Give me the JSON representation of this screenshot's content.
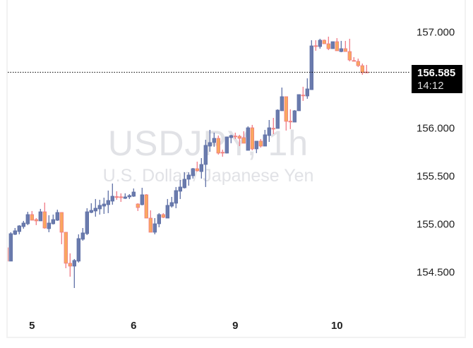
{
  "watermark": {
    "symbol": "USDJPY, 1h",
    "description": "U.S. Dollar / Japanese Yen"
  },
  "current_price": {
    "value": "156.585",
    "countdown": "14:12"
  },
  "colors": {
    "bull_fill": "#6a7bad",
    "bull_line": "#5f70a6",
    "bear_fill": "#f9a85f",
    "bear_line": "#f07a86",
    "price_line": "#000000"
  },
  "chart_data": {
    "type": "candlestick",
    "title": "",
    "ylim": [
      154.066,
      157.338
    ],
    "y_ticks": [
      "154.500",
      "155.000",
      "155.500",
      "156.000",
      "157.000"
    ],
    "x_labels": [
      {
        "label": "5",
        "index": 6
      },
      {
        "label": "6",
        "index": 30
      },
      {
        "label": "9",
        "index": 54
      },
      {
        "label": "10",
        "index": 78
      }
    ],
    "grid": false,
    "ohlc": [
      [
        154.757,
        154.801,
        154.603,
        154.618
      ],
      [
        154.618,
        154.919,
        154.618,
        154.904
      ],
      [
        154.897,
        154.963,
        154.89,
        154.934
      ],
      [
        154.926,
        154.993,
        154.897,
        154.985
      ],
      [
        154.978,
        155.037,
        154.956,
        155.015
      ],
      [
        155.007,
        155.132,
        154.993,
        155.103
      ],
      [
        155.103,
        155.14,
        155.044,
        155.044
      ],
      [
        155.051,
        155.066,
        154.993,
        155.037
      ],
      [
        155.037,
        155.162,
        155.037,
        155.132
      ],
      [
        155.132,
        155.228,
        154.956,
        154.963
      ],
      [
        154.956,
        155.096,
        154.919,
        155.015
      ],
      [
        155.007,
        155.103,
        155.0,
        155.051
      ],
      [
        155.044,
        155.154,
        155.037,
        155.125
      ],
      [
        155.125,
        155.125,
        154.794,
        154.919
      ],
      [
        154.919,
        154.919,
        154.544,
        154.596
      ],
      [
        154.596,
        154.699,
        154.456,
        154.566
      ],
      [
        154.566,
        154.64,
        154.338,
        154.625
      ],
      [
        154.618,
        154.897,
        154.603,
        154.853
      ],
      [
        154.846,
        154.963,
        154.831,
        154.912
      ],
      [
        154.904,
        155.169,
        154.89,
        155.132
      ],
      [
        155.125,
        155.221,
        155.118,
        155.147
      ],
      [
        155.14,
        155.265,
        155.081,
        155.169
      ],
      [
        155.162,
        155.257,
        155.103,
        155.199
      ],
      [
        155.191,
        155.279,
        155.11,
        155.213
      ],
      [
        155.206,
        155.353,
        155.118,
        155.25
      ],
      [
        155.243,
        155.426,
        155.206,
        155.294
      ],
      [
        155.29,
        155.346,
        155.257,
        155.285
      ],
      [
        155.288,
        155.324,
        155.235,
        155.283
      ],
      [
        155.272,
        155.324,
        155.265,
        155.287
      ],
      [
        155.287,
        155.316,
        155.265,
        155.301
      ],
      [
        155.294,
        155.375,
        155.287,
        155.338
      ],
      [
        155.213,
        155.221,
        155.14,
        155.176
      ],
      [
        155.206,
        155.382,
        155.199,
        155.309
      ],
      [
        155.309,
        155.316,
        155.066,
        155.066
      ],
      [
        155.066,
        155.147,
        154.919,
        154.919
      ],
      [
        154.919,
        155.066,
        154.897,
        155.007
      ],
      [
        155.007,
        155.118,
        154.971,
        155.103
      ],
      [
        155.103,
        155.118,
        155.066,
        155.074
      ],
      [
        155.066,
        155.265,
        155.066,
        155.199
      ],
      [
        155.191,
        155.287,
        155.176,
        155.228
      ],
      [
        155.221,
        155.39,
        155.169,
        155.353
      ],
      [
        155.346,
        155.463,
        155.265,
        155.39
      ],
      [
        155.382,
        155.544,
        155.375,
        155.471
      ],
      [
        155.471,
        155.544,
        155.404,
        155.515
      ],
      [
        155.507,
        155.588,
        155.478,
        155.581
      ],
      [
        155.581,
        155.654,
        155.551,
        155.559
      ],
      [
        155.551,
        155.691,
        155.478,
        155.625
      ],
      [
        155.625,
        155.882,
        155.39,
        155.824
      ],
      [
        155.816,
        155.985,
        155.757,
        155.853
      ],
      [
        155.853,
        155.956,
        155.809,
        155.897
      ],
      [
        155.897,
        155.926,
        155.728,
        155.743
      ],
      [
        155.752,
        155.779,
        155.706,
        155.748
      ],
      [
        155.743,
        155.915,
        155.74,
        155.912
      ],
      [
        155.904,
        155.934,
        155.846,
        155.926
      ],
      [
        155.921,
        155.956,
        155.89,
        155.917
      ],
      [
        155.919,
        155.934,
        155.816,
        155.897
      ],
      [
        155.904,
        155.971,
        155.846,
        155.846
      ],
      [
        155.772,
        156.022,
        155.772,
        156.007
      ],
      [
        156.007,
        156.037,
        155.772,
        155.787
      ],
      [
        155.787,
        155.868,
        155.743,
        155.868
      ],
      [
        155.868,
        155.89,
        155.801,
        155.816
      ],
      [
        155.816,
        155.985,
        155.816,
        155.934
      ],
      [
        155.926,
        156.088,
        155.86,
        156.007
      ],
      [
        156.002,
        156.11,
        155.941,
        155.998
      ],
      [
        156.0,
        156.199,
        156.0,
        156.191
      ],
      [
        156.184,
        156.426,
        156.184,
        156.331
      ],
      [
        156.331,
        156.331,
        155.978,
        156.074
      ],
      [
        156.076,
        156.199,
        155.993,
        156.072
      ],
      [
        156.066,
        156.191,
        156.066,
        156.184
      ],
      [
        156.184,
        156.353,
        156.184,
        156.353
      ],
      [
        156.348,
        156.434,
        156.287,
        156.344
      ],
      [
        156.338,
        156.522,
        156.309,
        156.412
      ],
      [
        156.404,
        156.919,
        156.404,
        156.86
      ],
      [
        156.862,
        156.919,
        156.809,
        156.858
      ],
      [
        156.853,
        156.934,
        156.831,
        156.919
      ],
      [
        156.919,
        156.926,
        156.882,
        156.882
      ],
      [
        156.882,
        156.956,
        156.816,
        156.831
      ],
      [
        156.831,
        156.904,
        156.831,
        156.904
      ],
      [
        156.904,
        156.941,
        156.809,
        156.809
      ],
      [
        156.801,
        156.912,
        156.794,
        156.831
      ],
      [
        156.831,
        156.912,
        156.801,
        156.801
      ],
      [
        156.801,
        156.934,
        156.699,
        156.713
      ],
      [
        156.708,
        156.743,
        156.699,
        156.704
      ],
      [
        156.699,
        156.728,
        156.64,
        156.654
      ],
      [
        156.654,
        156.676,
        156.559,
        156.581
      ],
      [
        156.588,
        156.662,
        156.581,
        156.585
      ]
    ]
  }
}
